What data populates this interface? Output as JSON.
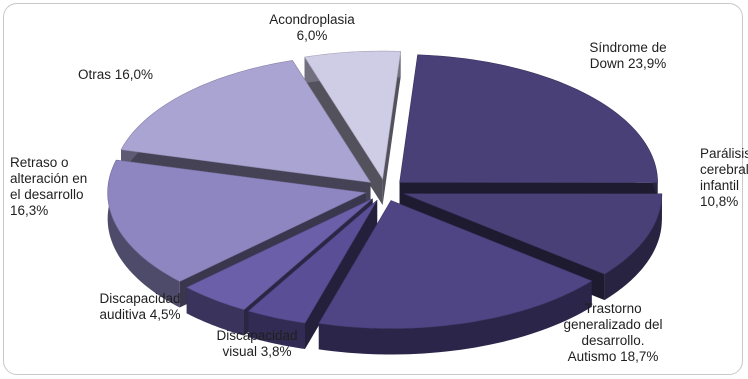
{
  "chart_data": {
    "type": "pie",
    "style": "3d-exploded",
    "slices": [
      {
        "label_lines": [
          "Síndrome de",
          "Down 23,9%"
        ],
        "value": 23.9,
        "color": "#4a4078"
      },
      {
        "label_lines": [
          "Parálisis",
          "cerebral",
          "infantil",
          "10,8%"
        ],
        "value": 10.8,
        "color": "#4a4078"
      },
      {
        "label_lines": [
          "Trastorno",
          "generalizado del",
          "desarrollo.",
          "Autismo 18,7%"
        ],
        "value": 18.7,
        "color": "#4f4585"
      },
      {
        "label_lines": [
          "Discapacidad",
          "visual 3,8%"
        ],
        "value": 3.8,
        "color": "#5a4f96"
      },
      {
        "label_lines": [
          "Discapacidad",
          "auditiva 4,5%"
        ],
        "value": 4.5,
        "color": "#6a5fa8"
      },
      {
        "label_lines": [
          "Retraso o",
          "alteración en",
          "el desarrollo",
          "16,3%"
        ],
        "value": 16.3,
        "color": "#8e86c0"
      },
      {
        "label_lines": [
          "Otras 16,0%"
        ],
        "value": 16.0,
        "color": "#aaa4d2"
      },
      {
        "label_lines": [
          "Acondroplasia",
          "6,0%"
        ],
        "value": 6.0,
        "color": "#cfcce6"
      }
    ],
    "legend": "none"
  }
}
